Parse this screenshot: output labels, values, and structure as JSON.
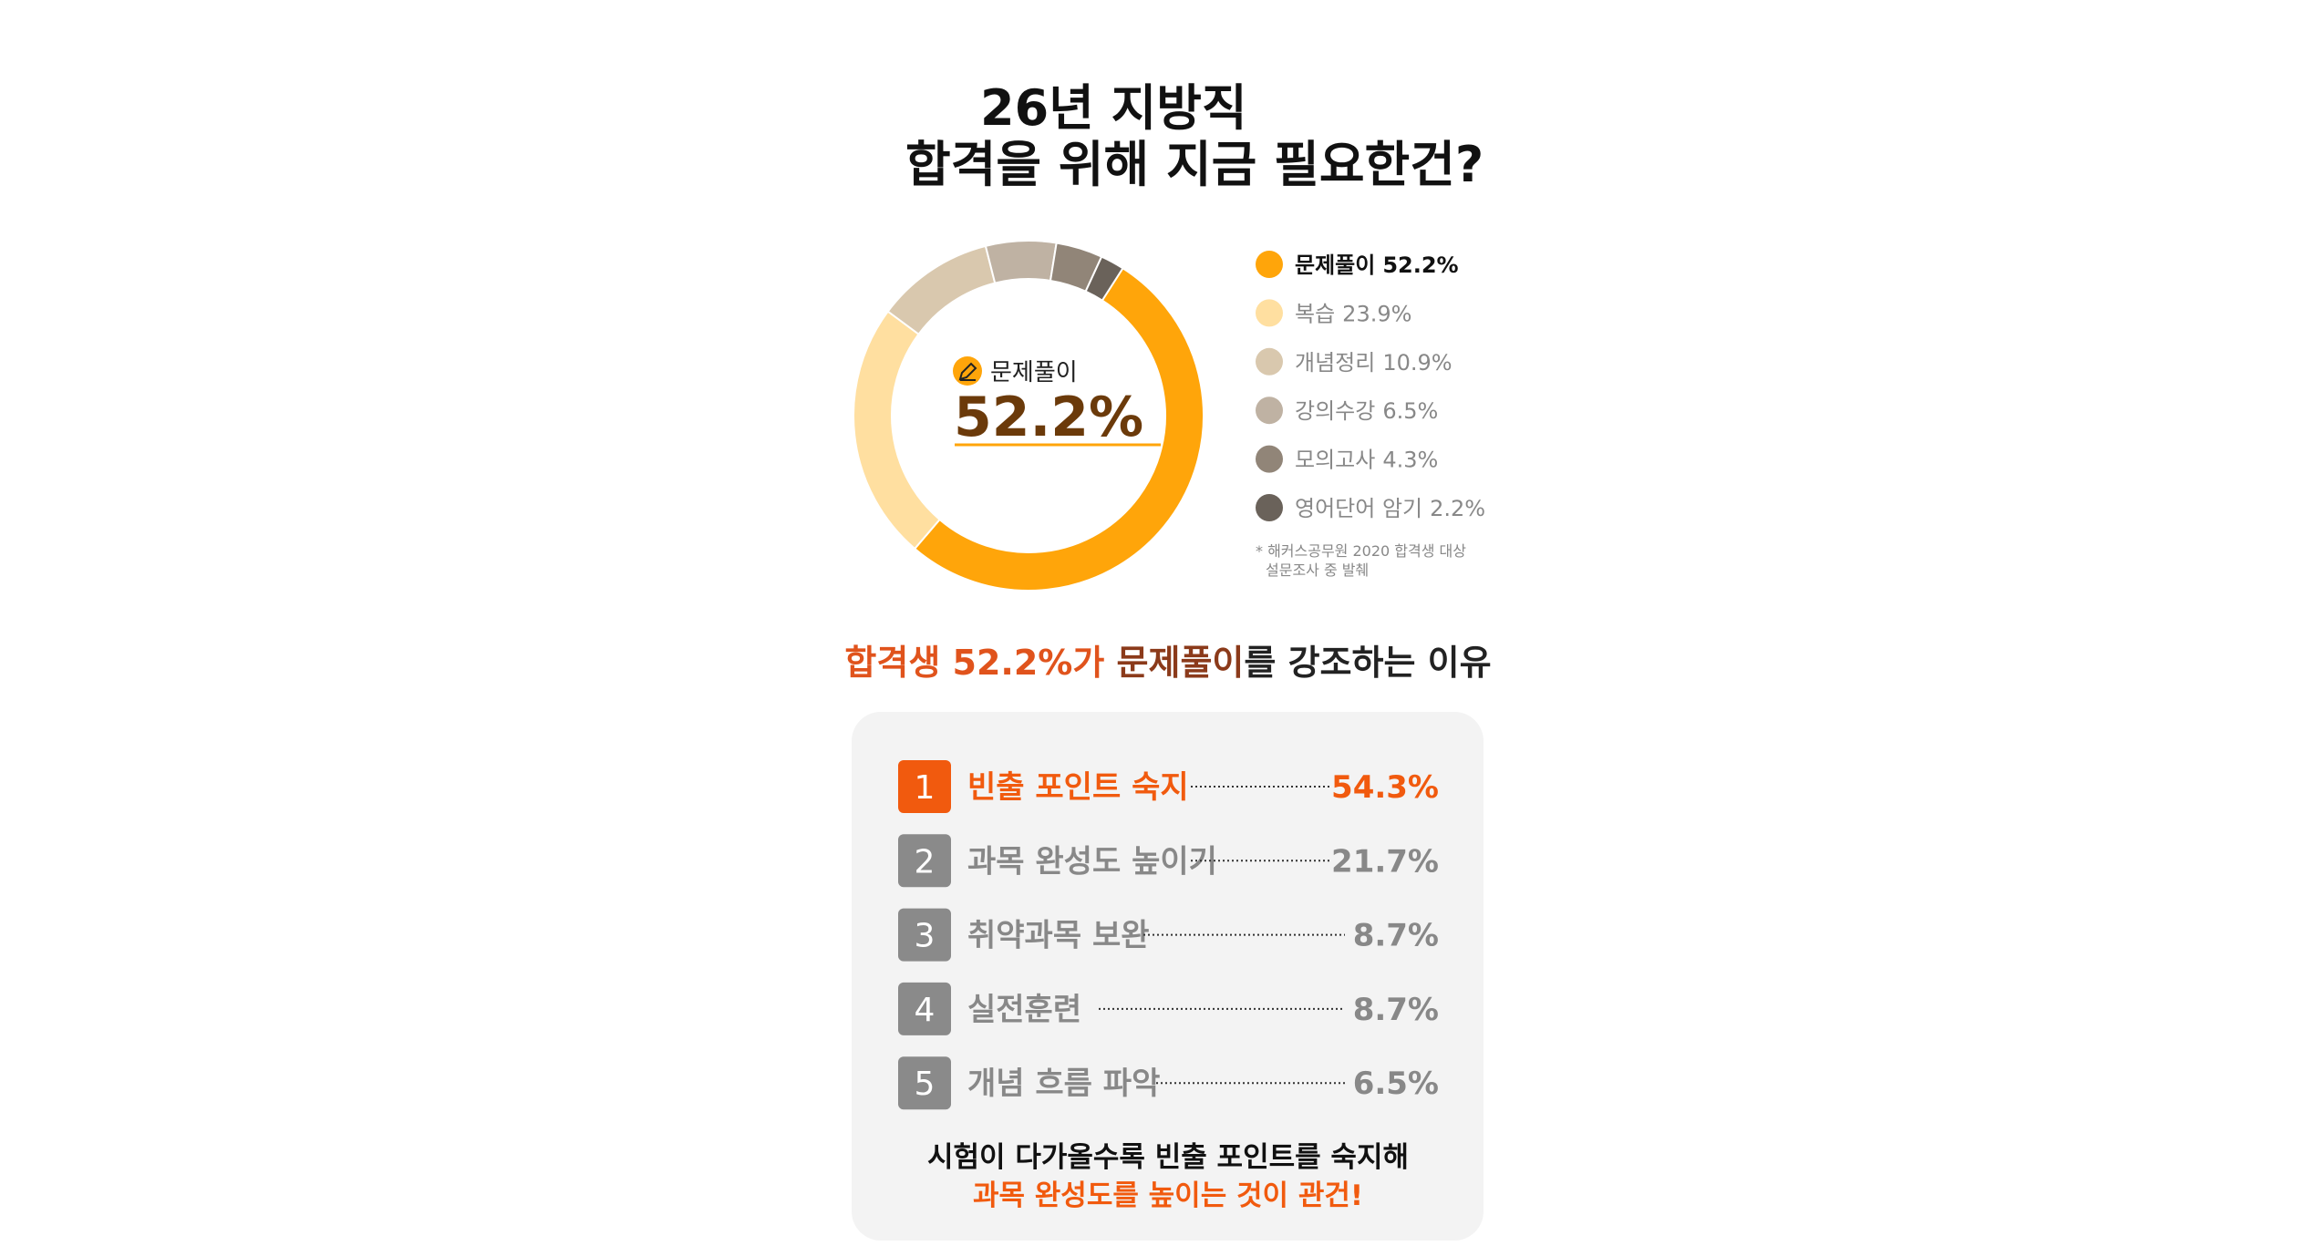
{
  "header": {
    "title_lines": [
      "26년 지방직",
      "합격을 위해 지금 필요한건?"
    ]
  },
  "chart_data": {
    "type": "pie",
    "center_label": "문제풀이",
    "categories": [
      "문제풀이",
      "복습",
      "개념정리",
      "강의수강",
      "모의고사",
      "영어단어 암기"
    ],
    "values": [
      52.2,
      23.9,
      10.9,
      6.5,
      4.3,
      2.2
    ],
    "value_labels": [
      "52.2%",
      "23.9%",
      "10.9%",
      "6.5%",
      "4.3%",
      "2.2%"
    ],
    "colors": [
      "#ffa50a",
      "#ffdfa0",
      "#d9c8ae",
      "#bfb2a3",
      "#918578",
      "#6a625a"
    ],
    "note_lines": [
      "* 해커스공무원 2020 합격생 대상",
      "설문조사 중 발췌"
    ]
  },
  "subtitle": [
    {
      "text": "합격생 52.2%가 ",
      "color": "#e0531c"
    },
    {
      "text": "문제풀이",
      "color": "#8b3a1a"
    },
    {
      "text": "를 강조하는 이유",
      "color": "#222222"
    }
  ],
  "ranking": {
    "items": [
      {
        "rank": "1",
        "label": "빈출 포인트 숙지",
        "value": "54.3%"
      },
      {
        "rank": "2",
        "label": "과목 완성도 높이기",
        "value": "21.7%"
      },
      {
        "rank": "3",
        "label": "취약과목 보완",
        "value": "8.7%"
      },
      {
        "rank": "4",
        "label": "실전훈련",
        "value": "8.7%"
      },
      {
        "rank": "5",
        "label": "개념 흐름 파악",
        "value": "6.5%"
      }
    ],
    "footer_lines": [
      "시험이 다가올수록 빈출 포인트를 숙지해",
      "과목 완성도를 높이는 것이 관건!"
    ]
  }
}
